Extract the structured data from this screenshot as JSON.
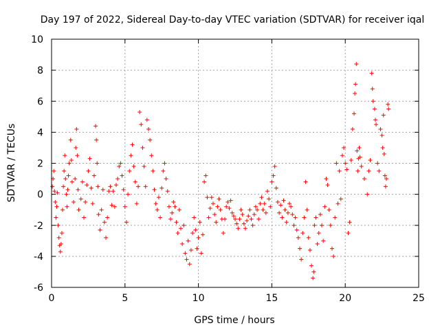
{
  "chart_data": {
    "type": "scatter",
    "title": "Day 197 of 2022, Sidereal Day-to-day VTEC variation (SDTVAR) for receiver iqal",
    "xlabel": "GPS time / hours",
    "ylabel": "SDTVAR / TECUs",
    "xlim": [
      0,
      25
    ],
    "ylim": [
      -6,
      10
    ],
    "xticks": [
      0,
      5,
      10,
      15,
      20,
      25
    ],
    "yticks": [
      -6,
      -4,
      -2,
      0,
      2,
      4,
      6,
      8,
      10
    ],
    "xtick_labels": [
      "0",
      "5",
      "10",
      "15",
      "20",
      "25"
    ],
    "ytick_labels": [
      "-6",
      "-4",
      "-2",
      "0",
      "2",
      "4",
      "6",
      "8",
      "10"
    ],
    "grid": true,
    "marker": "+",
    "series": [
      {
        "name": "SDTVAR",
        "color": "#ff0000",
        "points": [
          [
            0.05,
            0.5
          ],
          [
            0.1,
            1.0
          ],
          [
            0.15,
            1.5
          ],
          [
            0.2,
            0.2
          ],
          [
            0.25,
            -0.5
          ],
          [
            0.3,
            -1.5
          ],
          [
            0.35,
            -0.8
          ],
          [
            0.4,
            0.1
          ],
          [
            0.45,
            -2.0
          ],
          [
            0.5,
            -2.8
          ],
          [
            0.55,
            -3.3
          ],
          [
            0.6,
            -3.7
          ],
          [
            0.65,
            -3.2
          ],
          [
            0.7,
            -2.5
          ],
          [
            0.75,
            -1.0
          ],
          [
            0.8,
            0.5
          ],
          [
            0.85,
            1.5
          ],
          [
            0.9,
            2.5
          ],
          [
            0.95,
            1.0
          ],
          [
            1.0,
            0.0
          ],
          [
            1.05,
            -0.8
          ],
          [
            1.1,
            0.3
          ],
          [
            1.15,
            1.2
          ],
          [
            1.2,
            2.0
          ],
          [
            1.3,
            3.5
          ],
          [
            1.35,
            2.2
          ],
          [
            1.4,
            0.8
          ],
          [
            1.5,
            -0.5
          ],
          [
            1.6,
            1.0
          ],
          [
            1.65,
            3.0
          ],
          [
            1.7,
            4.2
          ],
          [
            1.75,
            2.5
          ],
          [
            1.8,
            0.3
          ],
          [
            1.85,
            -1.0
          ],
          [
            2.0,
            -0.3
          ],
          [
            2.1,
            0.8
          ],
          [
            2.2,
            -1.5
          ],
          [
            2.3,
            -0.5
          ],
          [
            2.4,
            0.6
          ],
          [
            2.5,
            1.5
          ],
          [
            2.6,
            2.3
          ],
          [
            2.7,
            0.4
          ],
          [
            2.8,
            -0.6
          ],
          [
            2.9,
            1.2
          ],
          [
            3.0,
            4.4
          ],
          [
            3.05,
            3.5
          ],
          [
            3.1,
            2.0
          ],
          [
            3.15,
            0.5
          ],
          [
            3.2,
            -1.3
          ],
          [
            3.3,
            -2.3
          ],
          [
            3.4,
            -1.0
          ],
          [
            3.5,
            0.3
          ],
          [
            3.6,
            -1.8
          ],
          [
            3.7,
            -2.8
          ],
          [
            3.8,
            -1.5
          ],
          [
            3.9,
            0.2
          ],
          [
            4.0,
            0.5
          ],
          [
            4.1,
            -0.7
          ],
          [
            4.2,
            0.2
          ],
          [
            4.3,
            -0.8
          ],
          [
            4.4,
            0.6
          ],
          [
            4.5,
            1.0
          ],
          [
            4.6,
            1.8
          ],
          [
            4.7,
            2.0
          ],
          [
            4.8,
            1.2
          ],
          [
            4.9,
            0.3
          ],
          [
            5.0,
            -0.8
          ],
          [
            5.1,
            -1.8
          ],
          [
            5.2,
            0.0
          ],
          [
            5.3,
            1.5
          ],
          [
            5.4,
            2.5
          ],
          [
            5.5,
            3.2
          ],
          [
            5.6,
            1.8
          ],
          [
            5.7,
            0.8
          ],
          [
            5.8,
            -0.6
          ],
          [
            5.9,
            0.5
          ],
          [
            6.0,
            5.3
          ],
          [
            6.1,
            4.5
          ],
          [
            6.2,
            3.0
          ],
          [
            6.3,
            1.8
          ],
          [
            6.4,
            0.5
          ],
          [
            6.5,
            4.8
          ],
          [
            6.6,
            4.2
          ],
          [
            6.7,
            3.5
          ],
          [
            6.8,
            2.5
          ],
          [
            6.9,
            1.5
          ],
          [
            7.0,
            0.3
          ],
          [
            7.1,
            -0.6
          ],
          [
            7.2,
            -1.0
          ],
          [
            7.3,
            -0.2
          ],
          [
            7.4,
            -1.5
          ],
          [
            7.5,
            0.4
          ],
          [
            7.6,
            1.5
          ],
          [
            7.7,
            2.0
          ],
          [
            7.8,
            1.0
          ],
          [
            7.9,
            0.2
          ],
          [
            8.0,
            -0.8
          ],
          [
            8.1,
            -1.6
          ],
          [
            8.2,
            -1.2
          ],
          [
            8.3,
            -0.5
          ],
          [
            8.4,
            -0.8
          ],
          [
            8.5,
            -1.8
          ],
          [
            8.6,
            -2.5
          ],
          [
            8.7,
            -1.0
          ],
          [
            8.8,
            -2.2
          ],
          [
            8.9,
            -3.2
          ],
          [
            9.0,
            -2.0
          ],
          [
            9.1,
            -3.8
          ],
          [
            9.2,
            -4.2
          ],
          [
            9.3,
            -3.0
          ],
          [
            9.4,
            -4.5
          ],
          [
            9.5,
            -3.6
          ],
          [
            9.6,
            -2.5
          ],
          [
            9.7,
            -1.5
          ],
          [
            9.8,
            -2.3
          ],
          [
            9.9,
            -3.5
          ],
          [
            10.0,
            -2.8
          ],
          [
            10.1,
            -1.8
          ],
          [
            10.2,
            -3.8
          ],
          [
            10.3,
            -2.6
          ],
          [
            10.4,
            0.8
          ],
          [
            10.5,
            1.2
          ],
          [
            10.6,
            -0.2
          ],
          [
            10.7,
            -1.5
          ],
          [
            10.8,
            -0.9
          ],
          [
            10.9,
            -0.2
          ],
          [
            11.0,
            -0.6
          ],
          [
            11.1,
            -1.3
          ],
          [
            11.2,
            -1.8
          ],
          [
            11.3,
            -0.8
          ],
          [
            11.4,
            -0.3
          ],
          [
            11.5,
            -1.0
          ],
          [
            11.6,
            -1.6
          ],
          [
            11.7,
            -2.5
          ],
          [
            11.8,
            -1.6
          ],
          [
            11.9,
            -0.8
          ],
          [
            12.0,
            -0.5
          ],
          [
            12.1,
            -0.9
          ],
          [
            12.2,
            -0.4
          ],
          [
            12.3,
            -1.2
          ],
          [
            12.4,
            -1.4
          ],
          [
            12.5,
            -1.6
          ],
          [
            12.6,
            -1.9
          ],
          [
            12.7,
            -2.2
          ],
          [
            12.8,
            -1.6
          ],
          [
            12.9,
            -1.0
          ],
          [
            13.0,
            -1.3
          ],
          [
            13.1,
            -1.9
          ],
          [
            13.2,
            -2.2
          ],
          [
            13.3,
            -1.7
          ],
          [
            13.4,
            -1.4
          ],
          [
            13.5,
            -1.0
          ],
          [
            13.6,
            -1.6
          ],
          [
            13.7,
            -2.0
          ],
          [
            13.8,
            -1.3
          ],
          [
            13.9,
            -0.8
          ],
          [
            14.0,
            -1.0
          ],
          [
            14.1,
            -1.6
          ],
          [
            14.2,
            -0.6
          ],
          [
            14.3,
            -0.2
          ],
          [
            14.4,
            -1.0
          ],
          [
            14.5,
            -0.6
          ],
          [
            14.6,
            -1.2
          ],
          [
            14.7,
            0.2
          ],
          [
            14.8,
            -0.3
          ],
          [
            14.9,
            -0.8
          ],
          [
            15.0,
            0.8
          ],
          [
            15.1,
            1.2
          ],
          [
            15.2,
            1.8
          ],
          [
            15.3,
            0.4
          ],
          [
            15.4,
            -0.5
          ],
          [
            15.5,
            -1.2
          ],
          [
            15.6,
            -0.7
          ],
          [
            15.7,
            -1.5
          ],
          [
            15.8,
            -0.4
          ],
          [
            15.9,
            -1.0
          ],
          [
            16.0,
            -1.8
          ],
          [
            16.1,
            -1.2
          ],
          [
            16.2,
            -0.6
          ],
          [
            16.3,
            -0.8
          ],
          [
            16.4,
            -1.3
          ],
          [
            16.5,
            -2.0
          ],
          [
            16.6,
            -1.5
          ],
          [
            16.7,
            -2.3
          ],
          [
            16.8,
            -2.8
          ],
          [
            16.9,
            -3.5
          ],
          [
            17.0,
            -4.2
          ],
          [
            17.1,
            -2.5
          ],
          [
            17.2,
            -1.5
          ],
          [
            17.3,
            0.8
          ],
          [
            17.4,
            -1.0
          ],
          [
            17.5,
            -2.8
          ],
          [
            17.6,
            -3.6
          ],
          [
            17.7,
            -4.6
          ],
          [
            17.8,
            -5.4
          ],
          [
            17.85,
            -5.0
          ],
          [
            17.9,
            -2.0
          ],
          [
            18.0,
            -1.5
          ],
          [
            18.1,
            -3.2
          ],
          [
            18.2,
            -2.5
          ],
          [
            18.3,
            -1.3
          ],
          [
            18.4,
            -2.0
          ],
          [
            18.5,
            -3.0
          ],
          [
            18.6,
            -0.8
          ],
          [
            18.7,
            1.0
          ],
          [
            18.8,
            0.6
          ],
          [
            18.9,
            -1.0
          ],
          [
            19.0,
            -2.0
          ],
          [
            19.1,
            -3.5
          ],
          [
            19.2,
            -4.0
          ],
          [
            19.3,
            -1.5
          ],
          [
            19.4,
            2.0
          ],
          [
            19.5,
            -0.6
          ],
          [
            19.6,
            1.5
          ],
          [
            19.7,
            -0.3
          ],
          [
            19.8,
            2.5
          ],
          [
            19.9,
            3.0
          ],
          [
            20.0,
            2.0
          ],
          [
            20.1,
            1.6
          ],
          [
            20.2,
            -2.5
          ],
          [
            20.3,
            -1.8
          ],
          [
            20.4,
            2.2
          ],
          [
            20.5,
            4.2
          ],
          [
            20.6,
            5.2
          ],
          [
            20.65,
            6.5
          ],
          [
            20.7,
            7.1
          ],
          [
            20.75,
            8.4
          ],
          [
            20.8,
            2.8
          ],
          [
            20.85,
            1.5
          ],
          [
            20.9,
            2.3
          ],
          [
            20.95,
            3.0
          ],
          [
            21.0,
            2.4
          ],
          [
            21.1,
            1.8
          ],
          [
            21.3,
            1.0
          ],
          [
            21.5,
            0.0
          ],
          [
            21.6,
            1.5
          ],
          [
            21.7,
            2.2
          ],
          [
            21.8,
            7.8
          ],
          [
            21.85,
            6.8
          ],
          [
            21.9,
            6.0
          ],
          [
            22.0,
            5.5
          ],
          [
            22.05,
            4.8
          ],
          [
            22.1,
            4.5
          ],
          [
            22.2,
            2.0
          ],
          [
            22.3,
            1.5
          ],
          [
            22.4,
            4.2
          ],
          [
            22.5,
            3.8
          ],
          [
            22.55,
            3.0
          ],
          [
            22.6,
            5.1
          ],
          [
            22.65,
            2.6
          ],
          [
            22.7,
            1.2
          ],
          [
            22.75,
            0.5
          ],
          [
            22.8,
            1.0
          ],
          [
            22.9,
            5.8
          ],
          [
            22.95,
            5.5
          ]
        ]
      }
    ]
  }
}
